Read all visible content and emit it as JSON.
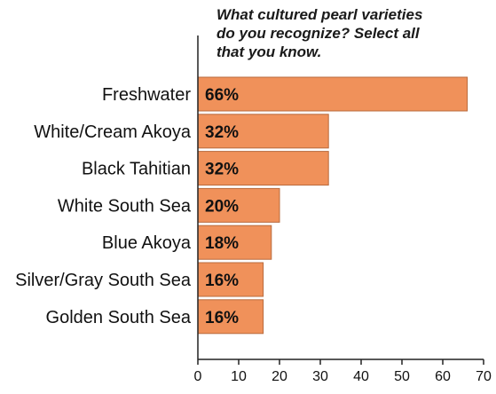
{
  "chart_data": {
    "type": "bar",
    "orientation": "horizontal",
    "title": "What cultured pearl varieties\ndo you recognize? Select all\nthat you know.",
    "categories": [
      "Freshwater",
      "White/Cream Akoya",
      "Black Tahitian",
      "White South Sea",
      "Blue Akoya",
      "Silver/Gray South Sea",
      "Golden South Sea"
    ],
    "values": [
      66,
      32,
      32,
      20,
      18,
      16,
      16
    ],
    "data_labels": [
      "66%",
      "32%",
      "32%",
      "20%",
      "18%",
      "16%",
      "16%"
    ],
    "xlim": [
      0,
      70
    ],
    "x_ticks": [
      "0",
      "10",
      "20",
      "30",
      "40",
      "50",
      "60",
      "70"
    ],
    "xlabel": "",
    "ylabel": "",
    "grid": false,
    "legend": "none",
    "colors": {
      "bar_fill": "#f0915a",
      "bar_stroke": "#b86a3c",
      "axis": "#222222",
      "text": "#111111"
    }
  }
}
